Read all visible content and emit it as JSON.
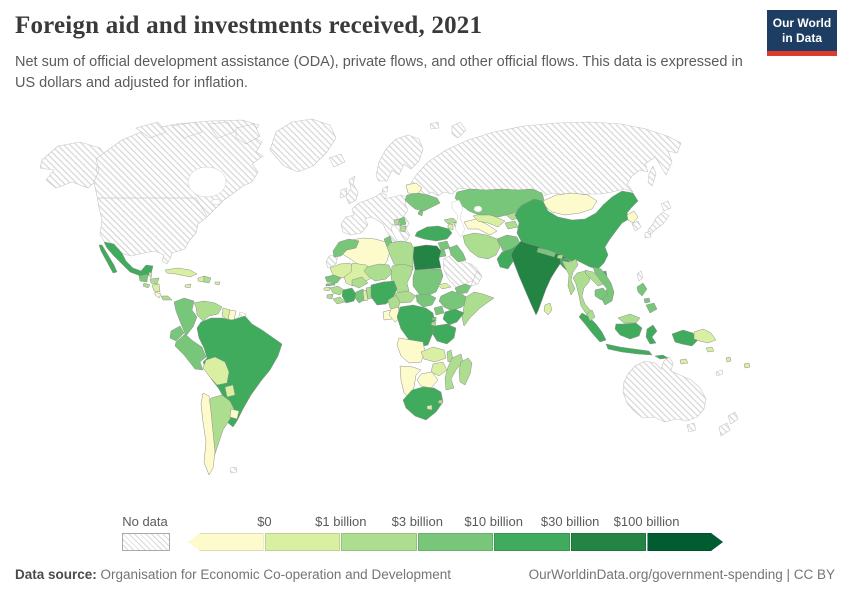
{
  "header": {
    "title": "Foreign aid and investments received, 2021",
    "subtitle": "Net sum of official development assistance (ODA), private flows, and other official flows. This data is expressed in US dollars and adjusted for inflation."
  },
  "logo": {
    "line1": "Our World",
    "line2": "in Data",
    "bg_color": "#1d3d63",
    "accent_color": "#dc3c2c"
  },
  "legend": {
    "no_data_label": "No data",
    "tick_labels": [
      "$0",
      "$1 billion",
      "$3 billion",
      "$10 billion",
      "$30 billion",
      "$100 billion"
    ]
  },
  "footer": {
    "source_label": "Data source:",
    "source_text": "Organisation for Economic Co-operation and Development",
    "link_text": "OurWorldinData.org/government-spending",
    "separator": " | ",
    "license_text": "CC BY"
  },
  "chart_data": {
    "type": "choropleth",
    "title": "Foreign aid and investments received",
    "year": 2021,
    "unit": "US dollars (inflation adjusted)",
    "legend_position": "bottom",
    "no_data_pattern": "diagonal-hatch",
    "bins": [
      {
        "label": "below $0",
        "color": "#fdfbcc"
      },
      {
        "label": "$0–$1 billion",
        "color": "#d9f0a3"
      },
      {
        "label": "$1–$3 billion",
        "color": "#addd8e"
      },
      {
        "label": "$3–$10 billion",
        "color": "#78c679"
      },
      {
        "label": "$10–$30 billion",
        "color": "#41ab5d"
      },
      {
        "label": "$30–$100 billion",
        "color": "#238443"
      },
      {
        "label": "over $100 billion",
        "color": "#015c32"
      }
    ],
    "no_data_countries": [
      "United States",
      "Canada",
      "Greenland",
      "Iceland",
      "United Kingdom",
      "Ireland",
      "Norway",
      "Sweden",
      "Finland",
      "Denmark",
      "Western Europe",
      "Russia",
      "Saudi Arabia",
      "Oman",
      "Japan",
      "South Korea",
      "Taiwan",
      "Australia",
      "New Zealand",
      "French Guiana",
      "Western Sahara",
      "Falkland Islands",
      "New Caledonia"
    ],
    "countries": {
      "mexico": 4,
      "guatemala": 3,
      "belize": 1,
      "honduras": 2,
      "el-salvador": 2,
      "nicaragua": 1,
      "costa-rica": 0,
      "panama": 2,
      "cuba": 1,
      "jamaica": 1,
      "haiti": 1,
      "dominican-republic": 2,
      "puerto-rico": 1,
      "colombia": 3,
      "venezuela": 2,
      "guyana": 1,
      "suriname": 0,
      "ecuador": 3,
      "peru": 3,
      "brazil": 4,
      "bolivia": 1,
      "paraguay": 1,
      "uruguay": 0,
      "chile": 0,
      "argentina": 2,
      "belarus": 0,
      "ukraine": 3,
      "moldova": 3,
      "serbia": 3,
      "bosnia": 2,
      "albania-macedonia": 2,
      "georgia": 2,
      "armenia": 1,
      "azerbaijan": 1,
      "turkey": 4,
      "syria": 3,
      "israel": 2,
      "jordan": 3,
      "iraq": 3,
      "yemen": 3,
      "iran": 2,
      "afghanistan": 3,
      "pakistan": 4,
      "turkmenistan": 0,
      "uzbekistan": 1,
      "kazakhstan": 3,
      "kyrgyzstan": 2,
      "tajikistan": 2,
      "morocco": 3,
      "algeria": 0,
      "tunisia": 3,
      "libya": 2,
      "egypt": 5,
      "mauritania": 1,
      "mali": 1,
      "niger": 2,
      "chad": 2,
      "sudan": 3,
      "eritrea": 1,
      "djibouti": 1,
      "ethiopia": 3,
      "somalia": 2,
      "south-sudan": 3,
      "central-african-republic": 2,
      "senegal": 3,
      "gambia": 3,
      "guinea-bissau": 1,
      "guinea": 2,
      "sierra-leone": 2,
      "liberia": 2,
      "cote-divoire": 4,
      "ghana": 3,
      "togo": 1,
      "benin": 2,
      "burkina-faso": 2,
      "nigeria": 4,
      "cameroon": 2,
      "gabon": 0,
      "congo": 0,
      "dr-congo": 4,
      "uganda": 3,
      "kenya": 4,
      "rwanda": 3,
      "burundi": 2,
      "tanzania": 4,
      "angola": 0,
      "zambia": 1,
      "malawi": 2,
      "mozambique": 2,
      "zimbabwe": 1,
      "botswana": 0,
      "namibia": 0,
      "south-africa": 4,
      "lesotho": 1,
      "eswatini": 2,
      "madagascar": 2,
      "india": 5,
      "nepal": 3,
      "bhutan": 2,
      "bangladesh": 4,
      "sri-lanka": 1,
      "myanmar": 2,
      "thailand": 2,
      "laos": 2,
      "vietnam": 3,
      "cambodia": 3,
      "malaysia": 2,
      "indonesia": 4,
      "papua-new-guinea": 1,
      "philippines": 3,
      "timor": 1,
      "china": 4,
      "hainan": 4,
      "mongolia": 0,
      "north-korea": 0,
      "fiji": 1,
      "vanuatu": 1,
      "solomon-islands": 1
    }
  }
}
